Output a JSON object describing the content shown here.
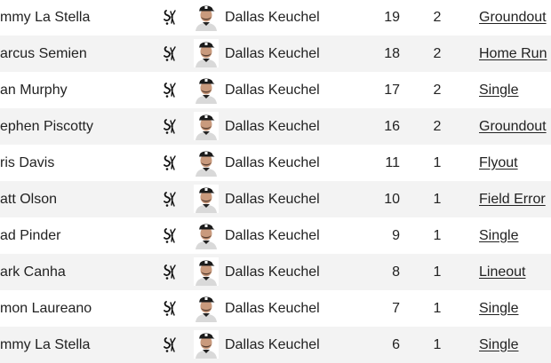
{
  "rows": [
    {
      "batter": "mmy La Stella",
      "pitcher": "Dallas Keuchel",
      "pitch_no": "19",
      "inning": "2",
      "result": "Groundout"
    },
    {
      "batter": "arcus Semien",
      "pitcher": "Dallas Keuchel",
      "pitch_no": "18",
      "inning": "2",
      "result": "Home Run"
    },
    {
      "batter": "an Murphy",
      "pitcher": "Dallas Keuchel",
      "pitch_no": "17",
      "inning": "2",
      "result": "Single"
    },
    {
      "batter": "ephen Piscotty",
      "pitcher": "Dallas Keuchel",
      "pitch_no": "16",
      "inning": "2",
      "result": "Groundout"
    },
    {
      "batter": "ris Davis",
      "pitcher": "Dallas Keuchel",
      "pitch_no": "11",
      "inning": "1",
      "result": "Flyout"
    },
    {
      "batter": "att Olson",
      "pitcher": "Dallas Keuchel",
      "pitch_no": "10",
      "inning": "1",
      "result": "Field Error"
    },
    {
      "batter": "ad Pinder",
      "pitcher": "Dallas Keuchel",
      "pitch_no": "9",
      "inning": "1",
      "result": "Single"
    },
    {
      "batter": "ark Canha",
      "pitcher": "Dallas Keuchel",
      "pitch_no": "8",
      "inning": "1",
      "result": "Lineout"
    },
    {
      "batter": "mon Laureano",
      "pitcher": "Dallas Keuchel",
      "pitch_no": "7",
      "inning": "1",
      "result": "Single"
    },
    {
      "batter": "mmy La Stella",
      "pitcher": "Dallas Keuchel",
      "pitch_no": "6",
      "inning": "1",
      "result": "Single"
    }
  ],
  "icons": {
    "team_logo": "white-sox-logo-icon",
    "avatar": "pitcher-headshot-icon"
  },
  "colors": {
    "row_alt": "#f3f3f3",
    "text": "#222222"
  }
}
